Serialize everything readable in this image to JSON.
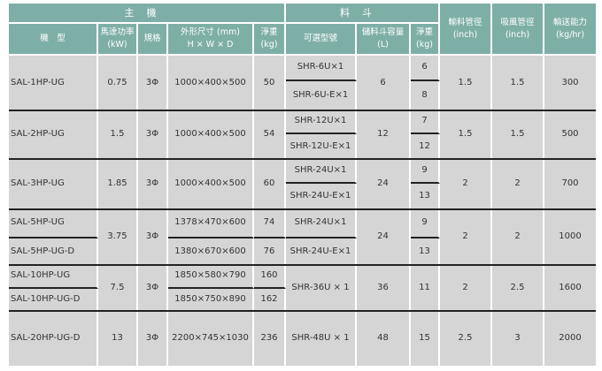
{
  "header": {
    "main_unit": "主機",
    "hopper": "料斗",
    "columns": {
      "model": "機　型",
      "power": "馬達功率\n(kW)",
      "spec": "規格",
      "dims": "外形尺寸 (mm)\nH × W × D",
      "weight": "淨重\n(kg)",
      "hopper_model": "可選型號",
      "capacity": "儲料斗容量\n(L)",
      "hopper_weight": "淨重\n(kg)",
      "convey_pipe": "輸料管徑\n(inch)",
      "suction_pipe": "吸風管徑\n(inch)",
      "throughput": "輸送能力\n(kg/hr)"
    }
  },
  "colors": {
    "header_bg": "#7eafa7",
    "cell_bg": "#d5d5d5",
    "divider": "#222222"
  },
  "rows": [
    {
      "model": [
        "SAL-1HP-UG"
      ],
      "power": [
        "0.75"
      ],
      "spec": [
        "3Φ"
      ],
      "dims": [
        "1000×400×500"
      ],
      "weight": [
        "50"
      ],
      "hopper_model": [
        "SHR-6U×1",
        "SHR-6U-E×1"
      ],
      "capacity": [
        "6"
      ],
      "hopper_weight": [
        "6",
        "8"
      ],
      "convey_pipe": [
        "1.5"
      ],
      "suction_pipe": [
        "1.5"
      ],
      "throughput": [
        "300"
      ]
    },
    {
      "model": [
        "SAL-2HP-UG"
      ],
      "power": [
        "1.5"
      ],
      "spec": [
        "3Φ"
      ],
      "dims": [
        "1000×400×500"
      ],
      "weight": [
        "54"
      ],
      "hopper_model": [
        "SHR-12U×1",
        "SHR-12U-E×1"
      ],
      "capacity": [
        "12"
      ],
      "hopper_weight": [
        "7",
        "12"
      ],
      "convey_pipe": [
        "1.5"
      ],
      "suction_pipe": [
        "1.5"
      ],
      "throughput": [
        "500"
      ]
    },
    {
      "model": [
        "SAL-3HP-UG"
      ],
      "power": [
        "1.85"
      ],
      "spec": [
        "3Φ"
      ],
      "dims": [
        "1000×400×500"
      ],
      "weight": [
        "60"
      ],
      "hopper_model": [
        "SHR-24U×1",
        "SHR-24U-E×1"
      ],
      "capacity": [
        "24"
      ],
      "hopper_weight": [
        "9",
        "13"
      ],
      "convey_pipe": [
        "2"
      ],
      "suction_pipe": [
        "2"
      ],
      "throughput": [
        "700"
      ]
    },
    {
      "model": [
        "SAL-5HP-UG",
        "SAL-5HP-UG-D"
      ],
      "power": [
        "3.75"
      ],
      "spec": [
        "3Φ"
      ],
      "dims": [
        "1378×470×600",
        "1380×670×600"
      ],
      "weight": [
        "74",
        "76"
      ],
      "hopper_model": [
        "SHR-24U×1",
        "SHR-24U-E×1"
      ],
      "capacity": [
        "24"
      ],
      "hopper_weight": [
        "9",
        "13"
      ],
      "convey_pipe": [
        "2"
      ],
      "suction_pipe": [
        "2"
      ],
      "throughput": [
        "1000"
      ]
    },
    {
      "model": [
        "SAL-10HP-UG",
        "SAL-10HP-UG-D"
      ],
      "power": [
        "7.5"
      ],
      "spec": [
        "3Φ"
      ],
      "dims": [
        "1850×580×790",
        "1850×750×890"
      ],
      "weight": [
        "160",
        "162"
      ],
      "hopper_model": [
        "SHR-36U × 1"
      ],
      "capacity": [
        "36"
      ],
      "hopper_weight": [
        "11"
      ],
      "convey_pipe": [
        "2"
      ],
      "suction_pipe": [
        "2.5"
      ],
      "throughput": [
        "1600"
      ]
    },
    {
      "model": [
        "SAL-20HP-UG-D"
      ],
      "power": [
        "13"
      ],
      "spec": [
        "3Φ"
      ],
      "dims": [
        "2200×745×1030"
      ],
      "weight": [
        "236"
      ],
      "hopper_model": [
        "SHR-48U × 1"
      ],
      "capacity": [
        "48"
      ],
      "hopper_weight": [
        "15"
      ],
      "convey_pipe": [
        "2.5"
      ],
      "suction_pipe": [
        "3"
      ],
      "throughput": [
        "2000"
      ]
    }
  ]
}
